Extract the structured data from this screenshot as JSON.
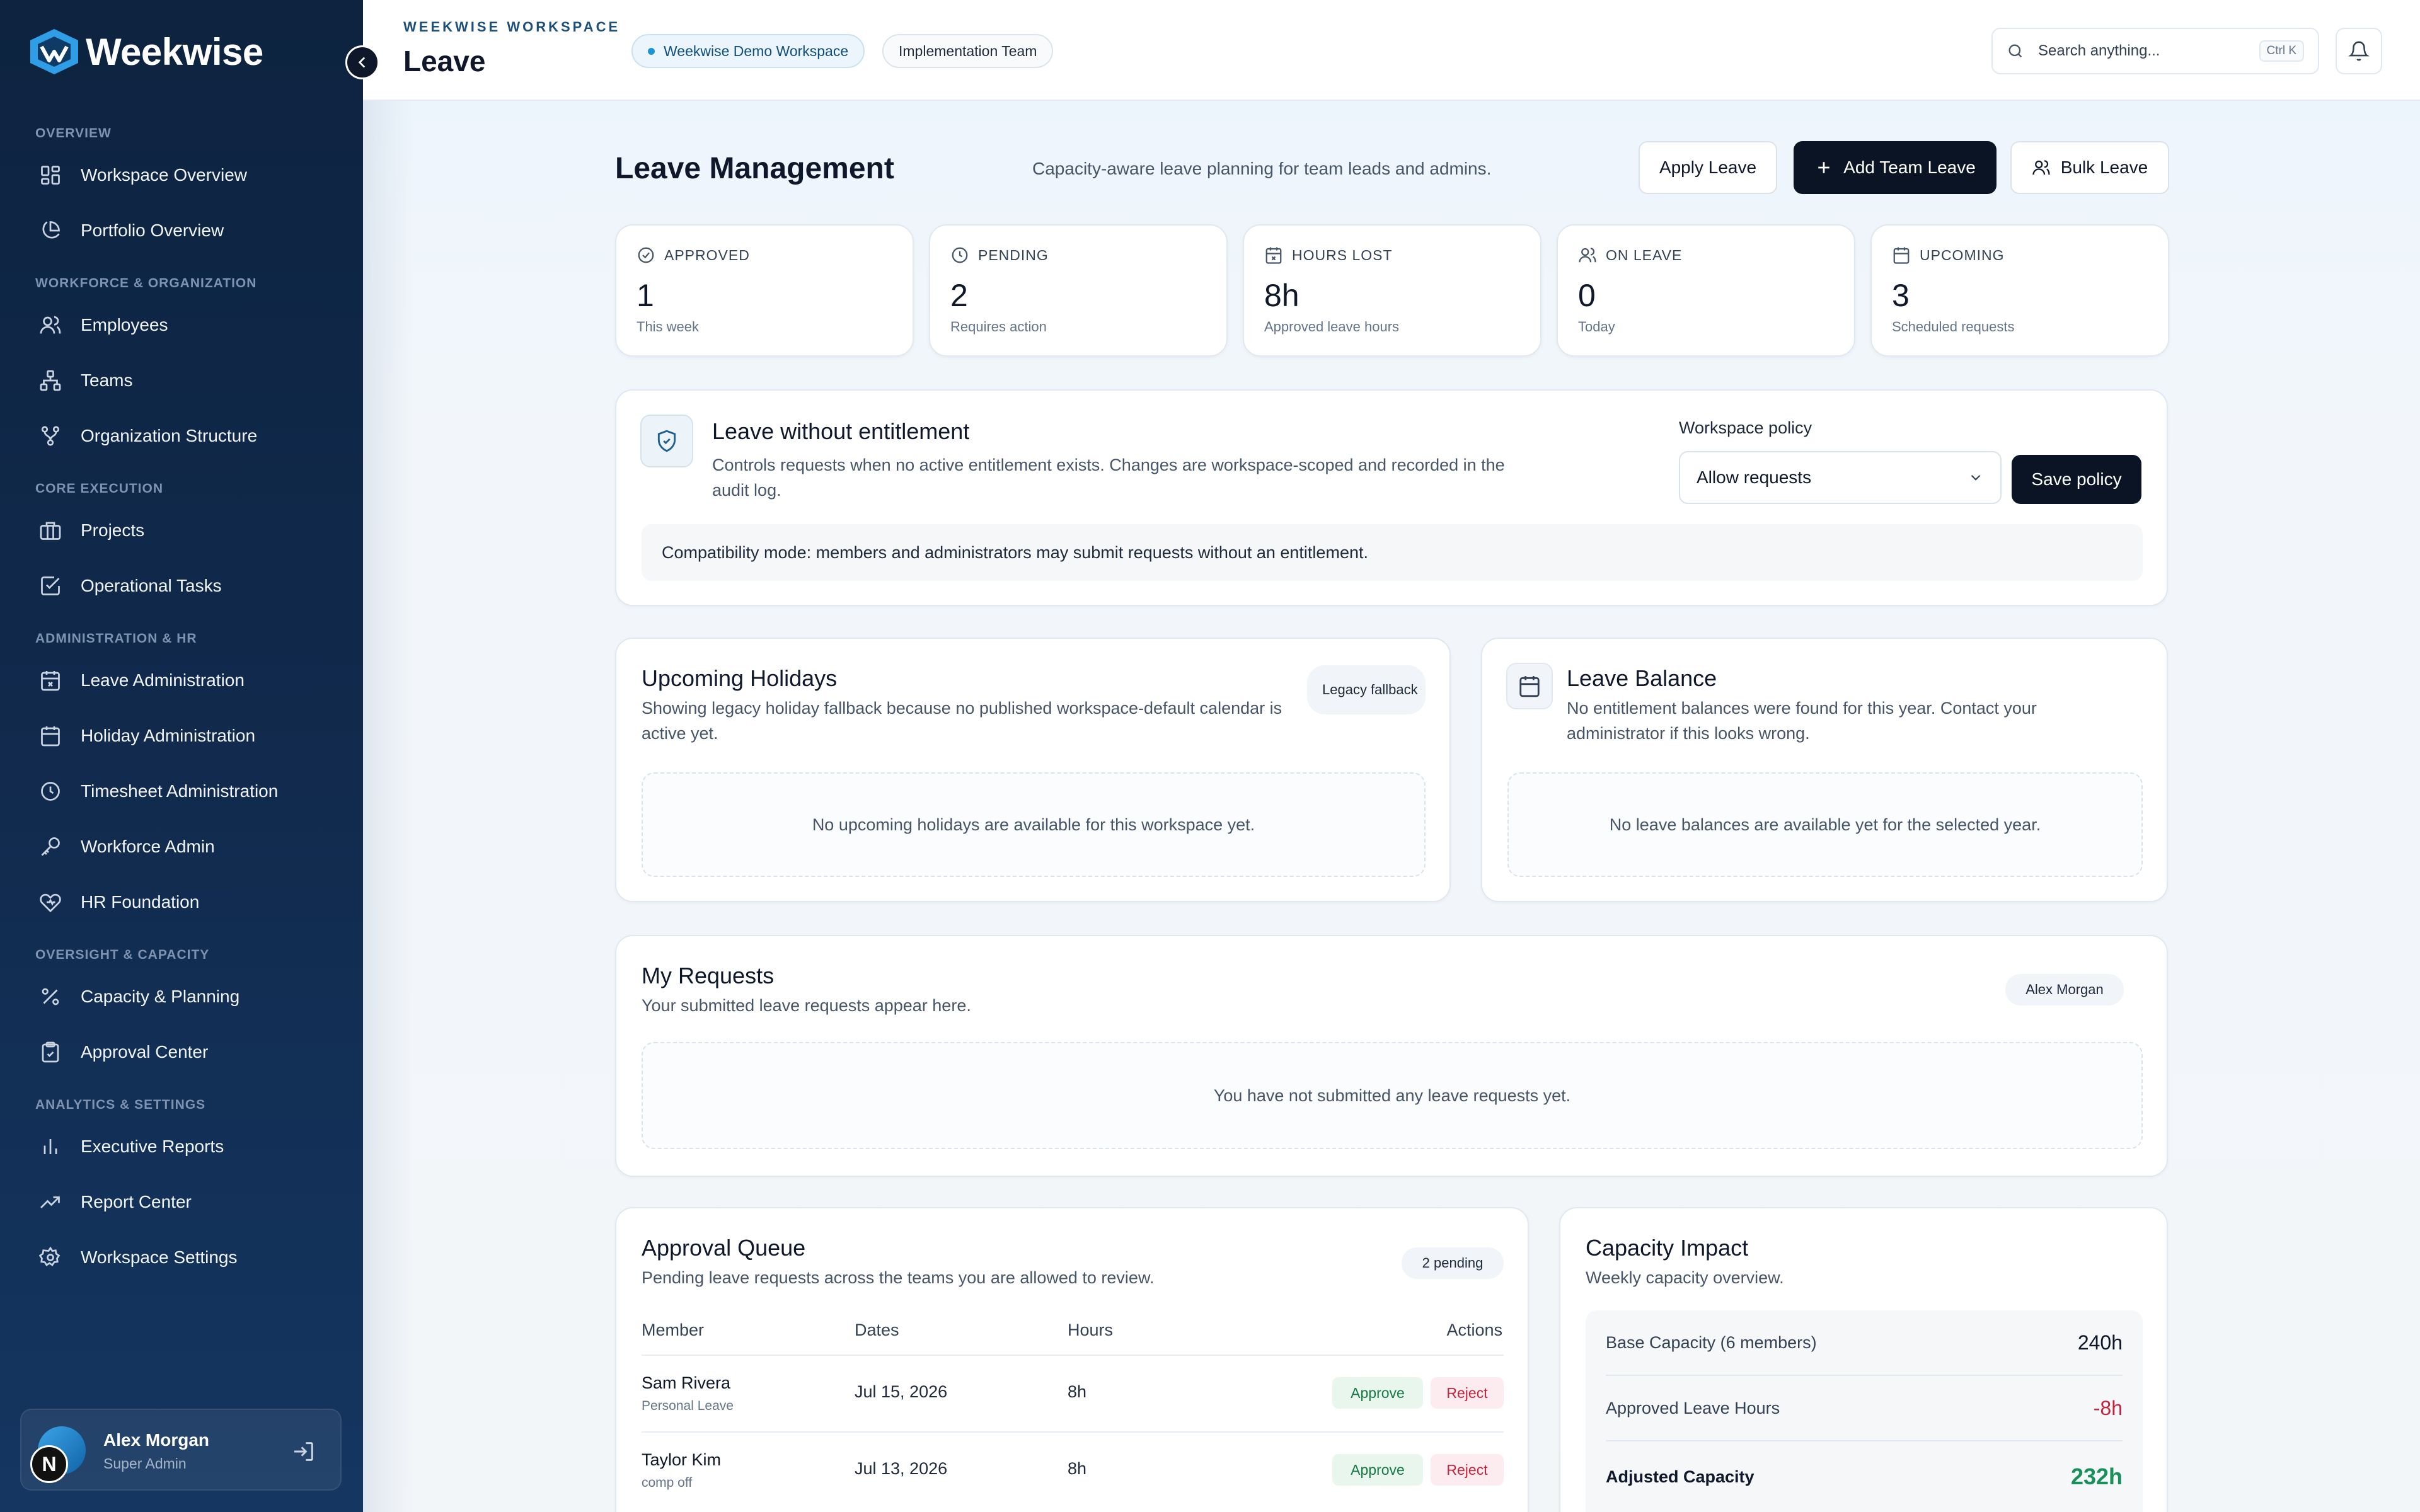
{
  "brand": {
    "name": "Weekwise"
  },
  "sidebar": {
    "sections": [
      {
        "title": "OVERVIEW",
        "items": [
          {
            "label": "Workspace Overview",
            "icon": "dashboard-icon"
          },
          {
            "label": "Portfolio Overview",
            "icon": "pie-chart-icon"
          }
        ]
      },
      {
        "title": "WORKFORCE & ORGANIZATION",
        "items": [
          {
            "label": "Employees",
            "icon": "users-icon"
          },
          {
            "label": "Teams",
            "icon": "network-icon"
          },
          {
            "label": "Organization Structure",
            "icon": "git-branch-icon"
          }
        ]
      },
      {
        "title": "CORE EXECUTION",
        "items": [
          {
            "label": "Projects",
            "icon": "briefcase-icon"
          },
          {
            "label": "Operational Tasks",
            "icon": "checkbox-icon"
          }
        ]
      },
      {
        "title": "ADMINISTRATION & HR",
        "items": [
          {
            "label": "Leave Administration",
            "icon": "calendar-x-icon"
          },
          {
            "label": "Holiday Administration",
            "icon": "calendar-icon"
          },
          {
            "label": "Timesheet Administration",
            "icon": "clock-icon"
          },
          {
            "label": "Workforce Admin",
            "icon": "key-icon"
          },
          {
            "label": "HR Foundation",
            "icon": "heart-icon"
          }
        ]
      },
      {
        "title": "OVERSIGHT & CAPACITY",
        "items": [
          {
            "label": "Capacity & Planning",
            "icon": "percent-icon"
          },
          {
            "label": "Approval Center",
            "icon": "clipboard-check-icon"
          }
        ]
      },
      {
        "title": "ANALYTICS & SETTINGS",
        "items": [
          {
            "label": "Executive Reports",
            "icon": "bar-chart-icon"
          },
          {
            "label": "Report Center",
            "icon": "trending-up-icon"
          },
          {
            "label": "Workspace Settings",
            "icon": "gear-icon"
          }
        ]
      }
    ],
    "user": {
      "name": "Alex Morgan",
      "role": "Super Admin",
      "badge": "N"
    }
  },
  "topbar": {
    "workspace_label": "WEEKWISE WORKSPACE",
    "title": "Leave",
    "workspace_chip": "Weekwise Demo Workspace",
    "team_chip": "Implementation Team",
    "search_placeholder": "Search anything...",
    "search_shortcut": "Ctrl K"
  },
  "header": {
    "title": "Leave Management",
    "subtitle": "Capacity-aware leave planning for team leads and admins.",
    "apply_label": "Apply Leave",
    "add_team_label": "Add Team Leave",
    "bulk_label": "Bulk Leave"
  },
  "stats": [
    {
      "label": "APPROVED",
      "value": "1",
      "hint": "This week"
    },
    {
      "label": "PENDING",
      "value": "2",
      "hint": "Requires action"
    },
    {
      "label": "HOURS LOST",
      "value": "8h",
      "hint": "Approved leave hours"
    },
    {
      "label": "ON LEAVE",
      "value": "0",
      "hint": "Today"
    },
    {
      "label": "UPCOMING",
      "value": "3",
      "hint": "Scheduled requests"
    }
  ],
  "policy": {
    "title": "Leave without entitlement",
    "description": "Controls requests when no active entitlement exists. Changes are workspace-scoped and recorded in the audit log.",
    "select_label": "Workspace policy",
    "select_value": "Allow requests",
    "save_label": "Save policy",
    "note": "Compatibility mode: members and administrators may submit requests without an entitlement."
  },
  "holidays": {
    "title": "Upcoming Holidays",
    "description": "Showing legacy holiday fallback because no published workspace-default calendar is active yet.",
    "badge": "Legacy fallback",
    "empty": "No upcoming holidays are available for this workspace yet."
  },
  "balance": {
    "title": "Leave Balance",
    "description": "No entitlement balances were found for this year. Contact your administrator if this looks wrong.",
    "empty": "No leave balances are available yet for the selected year."
  },
  "requests": {
    "title": "My Requests",
    "description": "Your submitted leave requests appear here.",
    "badge": "Alex Morgan",
    "empty": "You have not submitted any leave requests yet."
  },
  "queue": {
    "title": "Approval Queue",
    "description": "Pending leave requests across the teams you are allowed to review.",
    "badge": "2 pending",
    "columns": [
      "Member",
      "Dates",
      "Hours",
      "Actions"
    ],
    "rows": [
      {
        "name": "Sam Rivera",
        "type": "Personal Leave",
        "date": "Jul 15, 2026",
        "hours": "8h",
        "approve": "Approve",
        "reject": "Reject"
      },
      {
        "name": "Taylor Kim",
        "type": "comp off",
        "date": "Jul 13, 2026",
        "hours": "8h",
        "approve": "Approve",
        "reject": "Reject"
      }
    ]
  },
  "capacity": {
    "title": "Capacity Impact",
    "description": "Weekly capacity overview.",
    "rows": [
      {
        "label": "Base Capacity (6 members)",
        "value": "240h"
      },
      {
        "label": "Approved Leave Hours",
        "value": "-8h"
      },
      {
        "label": "Adjusted Capacity",
        "value": "232h"
      }
    ],
    "colors": {
      "negative": "#c4243d",
      "positive": "#17905a"
    }
  }
}
